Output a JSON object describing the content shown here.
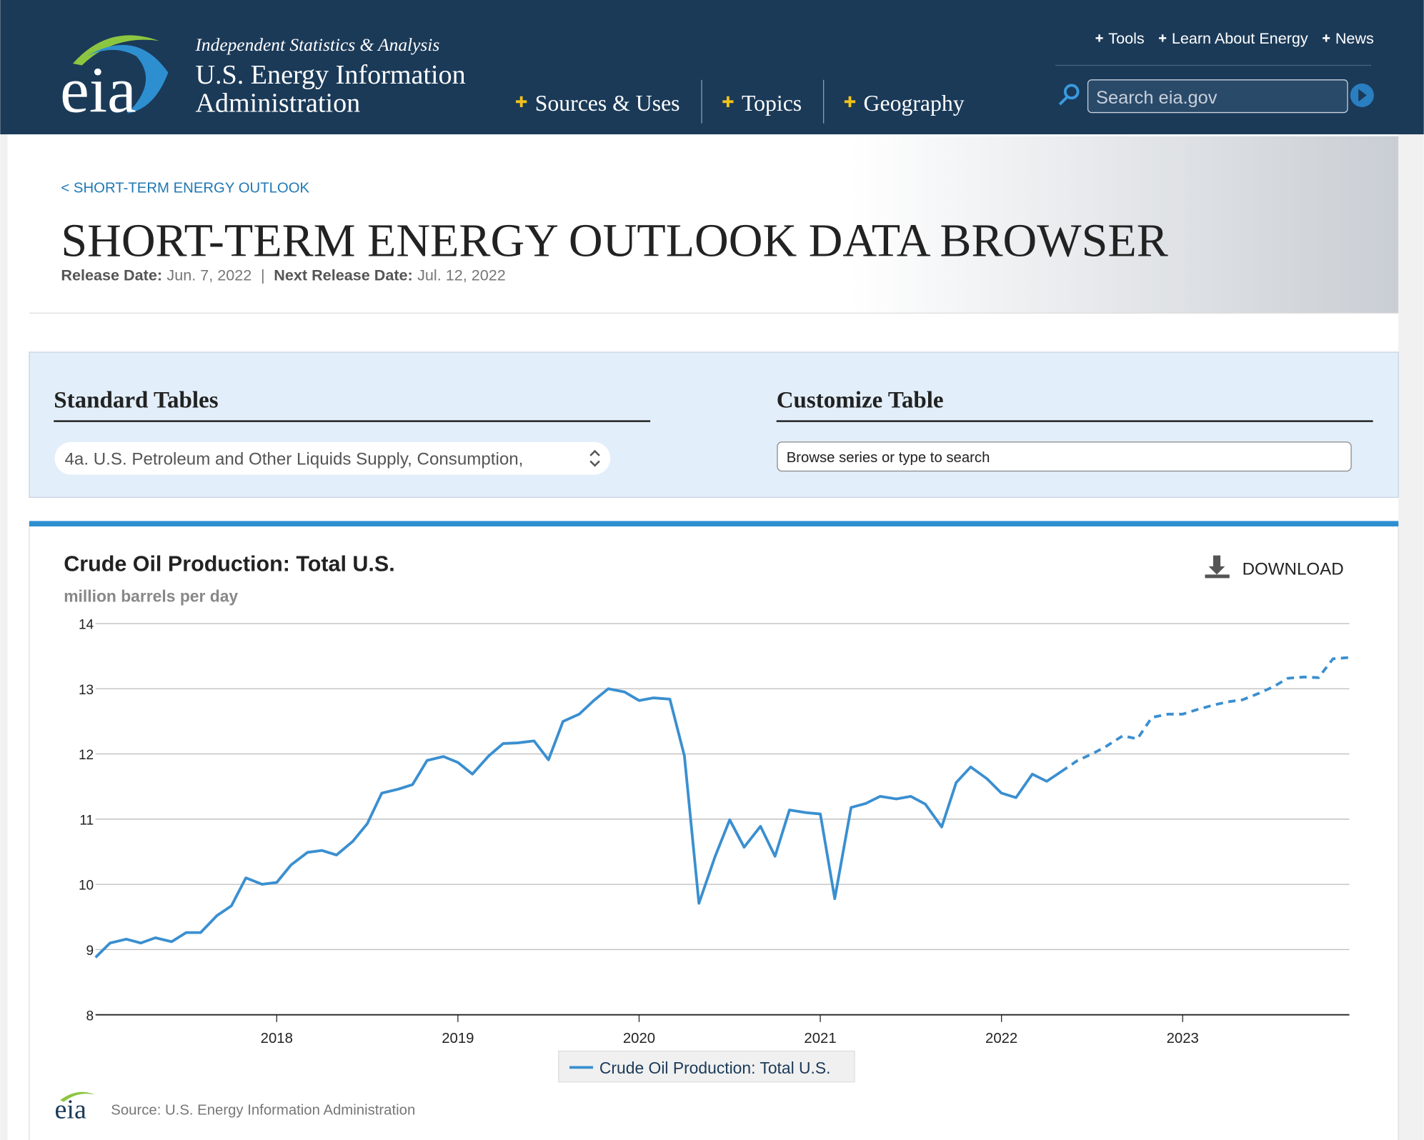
{
  "header": {
    "logo": "eia",
    "tagline": "Independent Statistics & Analysis",
    "org_lines": [
      "U.S. Energy Information",
      "Administration"
    ],
    "nav": [
      "Sources & Uses",
      "Topics",
      "Geography"
    ],
    "top_links": [
      "Tools",
      "Learn About Energy",
      "News"
    ],
    "search_placeholder": "Search eia.gov"
  },
  "breadcrumb": "< SHORT-TERM ENERGY OUTLOOK",
  "page_title": "SHORT-TERM ENERGY OUTLOOK DATA BROWSER",
  "release": {
    "release_label": "Release Date:",
    "release_date": "Jun. 7, 2022",
    "separator": "|",
    "next_label": "Next Release Date:",
    "next_date": "Jul. 12, 2022"
  },
  "standard_tables": {
    "heading": "Standard Tables",
    "selected": "4a. U.S. Petroleum and Other Liquids Supply, Consumption,"
  },
  "customize_table": {
    "heading": "Customize Table",
    "placeholder": "Browse series or type to search"
  },
  "download": "DOWNLOAD",
  "source": "Source: U.S. Energy Information Administration",
  "chart_data": {
    "type": "line",
    "title": "Crude Oil Production: Total U.S.",
    "subtitle": "million barrels per day",
    "x": [
      2017,
      2017.08,
      2017.17,
      2017.25,
      2017.33,
      2017.42,
      2017.5,
      2017.58,
      2017.67,
      2017.75,
      2017.83,
      2017.92,
      2018,
      2018.08,
      2018.17,
      2018.25,
      2018.33,
      2018.42,
      2018.5,
      2018.58,
      2018.67,
      2018.75,
      2018.83,
      2018.92,
      2019,
      2019.08,
      2019.17,
      2019.25,
      2019.33,
      2019.42,
      2019.5,
      2019.58,
      2019.67,
      2019.75,
      2019.83,
      2019.92,
      2020,
      2020.08,
      2020.17,
      2020.25,
      2020.33,
      2020.42,
      2020.5,
      2020.58,
      2020.67,
      2020.75,
      2020.83,
      2020.92,
      2021,
      2021.08,
      2021.17,
      2021.25,
      2021.33,
      2021.42,
      2021.5,
      2021.58,
      2021.67,
      2021.75,
      2021.83,
      2021.92,
      2022,
      2022.08,
      2022.17,
      2022.25,
      2022.33,
      2022.42,
      2022.5,
      2022.58,
      2022.67,
      2022.75,
      2022.83,
      2022.92,
      2023,
      2023.08,
      2023.17,
      2023.25,
      2023.33,
      2023.42,
      2023.5,
      2023.58,
      2023.67,
      2023.75,
      2023.83,
      2023.92
    ],
    "series": [
      {
        "name": "Crude Oil Production: Total U.S.",
        "color": "#3a8fd0",
        "values": [
          8.88,
          9.1,
          9.16,
          9.1,
          9.18,
          9.12,
          9.26,
          9.26,
          9.52,
          9.67,
          10.1,
          10.0,
          10.03,
          10.3,
          10.49,
          10.52,
          10.45,
          10.66,
          10.93,
          11.4,
          11.46,
          11.53,
          11.9,
          11.96,
          11.87,
          11.69,
          11.97,
          12.16,
          12.17,
          12.2,
          11.91,
          12.5,
          12.61,
          12.82,
          13.0,
          12.95,
          12.82,
          12.86,
          12.84,
          11.97,
          9.71,
          10.43,
          10.99,
          10.57,
          10.89,
          10.43,
          11.14,
          11.1,
          11.08,
          9.78,
          11.18,
          11.24,
          11.35,
          11.31,
          11.35,
          11.23,
          10.88,
          11.56,
          11.8,
          11.62,
          11.4,
          11.33,
          11.69,
          11.58,
          11.73,
          11.9,
          12.0,
          12.12,
          12.28,
          12.23,
          12.56,
          12.61,
          12.61,
          12.68,
          12.75,
          12.8,
          12.83,
          12.93,
          13.03,
          13.16,
          13.18,
          13.17,
          13.46,
          13.48
        ]
      }
    ],
    "forecast_from": 2022.33,
    "xlim": [
      2017,
      2023.92
    ],
    "xticks": [
      2018,
      2019,
      2020,
      2021,
      2022,
      2023
    ],
    "ylim": [
      8,
      14
    ],
    "yticks": [
      8,
      9,
      10,
      11,
      12,
      13,
      14
    ],
    "grid": true
  }
}
